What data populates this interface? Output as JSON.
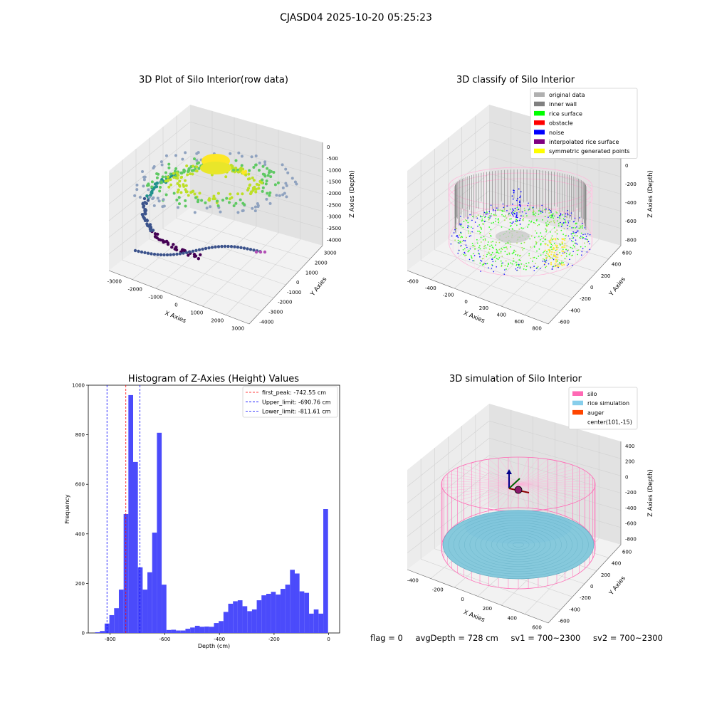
{
  "suptitle": "CJASD04 2025-10-20 05:25:23",
  "panels": {
    "p1": {
      "title": "3D Plot of Silo Interior(row data)",
      "xlabel": "X Axies",
      "ylabel": "Y Axies",
      "zlabel": "Z Axies (Depth)",
      "xticks": [
        "-3000",
        "-2000",
        "-1000",
        "0",
        "1000",
        "2000",
        "3000"
      ],
      "yticks": [
        "3000",
        "2000",
        "1000",
        "0",
        "-1000",
        "-2000",
        "-3000",
        "-4000"
      ],
      "zticks": [
        "0",
        "-500",
        "-1000",
        "-1500",
        "-2000",
        "-2500",
        "-3000",
        "-3500",
        "-4000"
      ]
    },
    "p2": {
      "title": "3D classify of Silo Interior",
      "xlabel": "X Axies",
      "ylabel": "Y Axies",
      "zlabel": "Z Axies (Depth)",
      "xticks": [
        "-600",
        "-400",
        "-200",
        "0",
        "200",
        "400",
        "600",
        "800"
      ],
      "yticks": [
        "600",
        "400",
        "200",
        "0",
        "-200",
        "-400",
        "-600"
      ],
      "zticks": [
        "200",
        "0",
        "-200",
        "-400",
        "-600",
        "-800"
      ],
      "legend": [
        {
          "label": "original data",
          "color": "#b0b0b0"
        },
        {
          "label": "inner wall",
          "color": "#808080"
        },
        {
          "label": "rice surface",
          "color": "#00ff00"
        },
        {
          "label": "obstacle",
          "color": "#ff0000"
        },
        {
          "label": "noise",
          "color": "#0000ff"
        },
        {
          "label": "interpolated rice surface",
          "color": "#800080"
        },
        {
          "label": "symmetric generated points",
          "color": "#ffff00"
        }
      ]
    },
    "p4": {
      "title": "3D simulation of Silo Interior",
      "xlabel": "X Axies",
      "ylabel": "Y Axies",
      "zlabel": "Z Axies (Depth)",
      "xticks": [
        "-400",
        "-200",
        "0",
        "200",
        "400",
        "600"
      ],
      "yticks": [
        "600",
        "400",
        "200",
        "0",
        "-200",
        "-400",
        "-600"
      ],
      "zticks": [
        "400",
        "200",
        "0",
        "-200",
        "-400",
        "-600",
        "-800"
      ],
      "legend": [
        {
          "label": "silo",
          "color": "#ff69b4"
        },
        {
          "label": "rice simulation",
          "color": "#87ceeb"
        },
        {
          "label": "auger",
          "color": "#ff4500"
        },
        {
          "label": "center(101,-15)",
          "color": ""
        }
      ]
    }
  },
  "footer": {
    "flag": "flag = 0",
    "avg_depth": "avgDepth = 728 cm",
    "sv1": "sv1 = 700~2300",
    "sv2": "sv2 = 700~2300"
  },
  "colors": {
    "hist": "#4b4bfb",
    "first_peak": "#ff0000",
    "limits": "#0000ff"
  },
  "chart_data": [
    {
      "type": "histogram",
      "title": "Histogram of Z-Axies (Height) Values",
      "xlabel": "Depth (cm)",
      "ylabel": "Frequency",
      "xlim": [
        -880,
        40
      ],
      "ylim": [
        0,
        1000
      ],
      "xticks": [
        -800,
        -600,
        -400,
        -200,
        0
      ],
      "yticks": [
        0,
        200,
        400,
        600,
        800,
        1000
      ],
      "bin_start": -855,
      "bin_width": 17.4,
      "counts": [
        3,
        8,
        38,
        72,
        100,
        175,
        480,
        960,
        690,
        265,
        175,
        245,
        405,
        808,
        195,
        12,
        13,
        10,
        10,
        17,
        22,
        29,
        25,
        26,
        25,
        40,
        48,
        85,
        118,
        128,
        132,
        108,
        88,
        95,
        132,
        152,
        158,
        166,
        155,
        178,
        195,
        255,
        240,
        168,
        162,
        78,
        95,
        78,
        500
      ],
      "vlines": [
        {
          "label": "first_peak: -742.55 cm",
          "x": -742.55,
          "color": "#ff0000"
        },
        {
          "label": "Upper_limit: -690.76 cm",
          "x": -690.76,
          "color": "#0000ff"
        },
        {
          "label": "Lower_limit: -811.61 cm",
          "x": -811.61,
          "color": "#0000ff"
        }
      ]
    }
  ]
}
